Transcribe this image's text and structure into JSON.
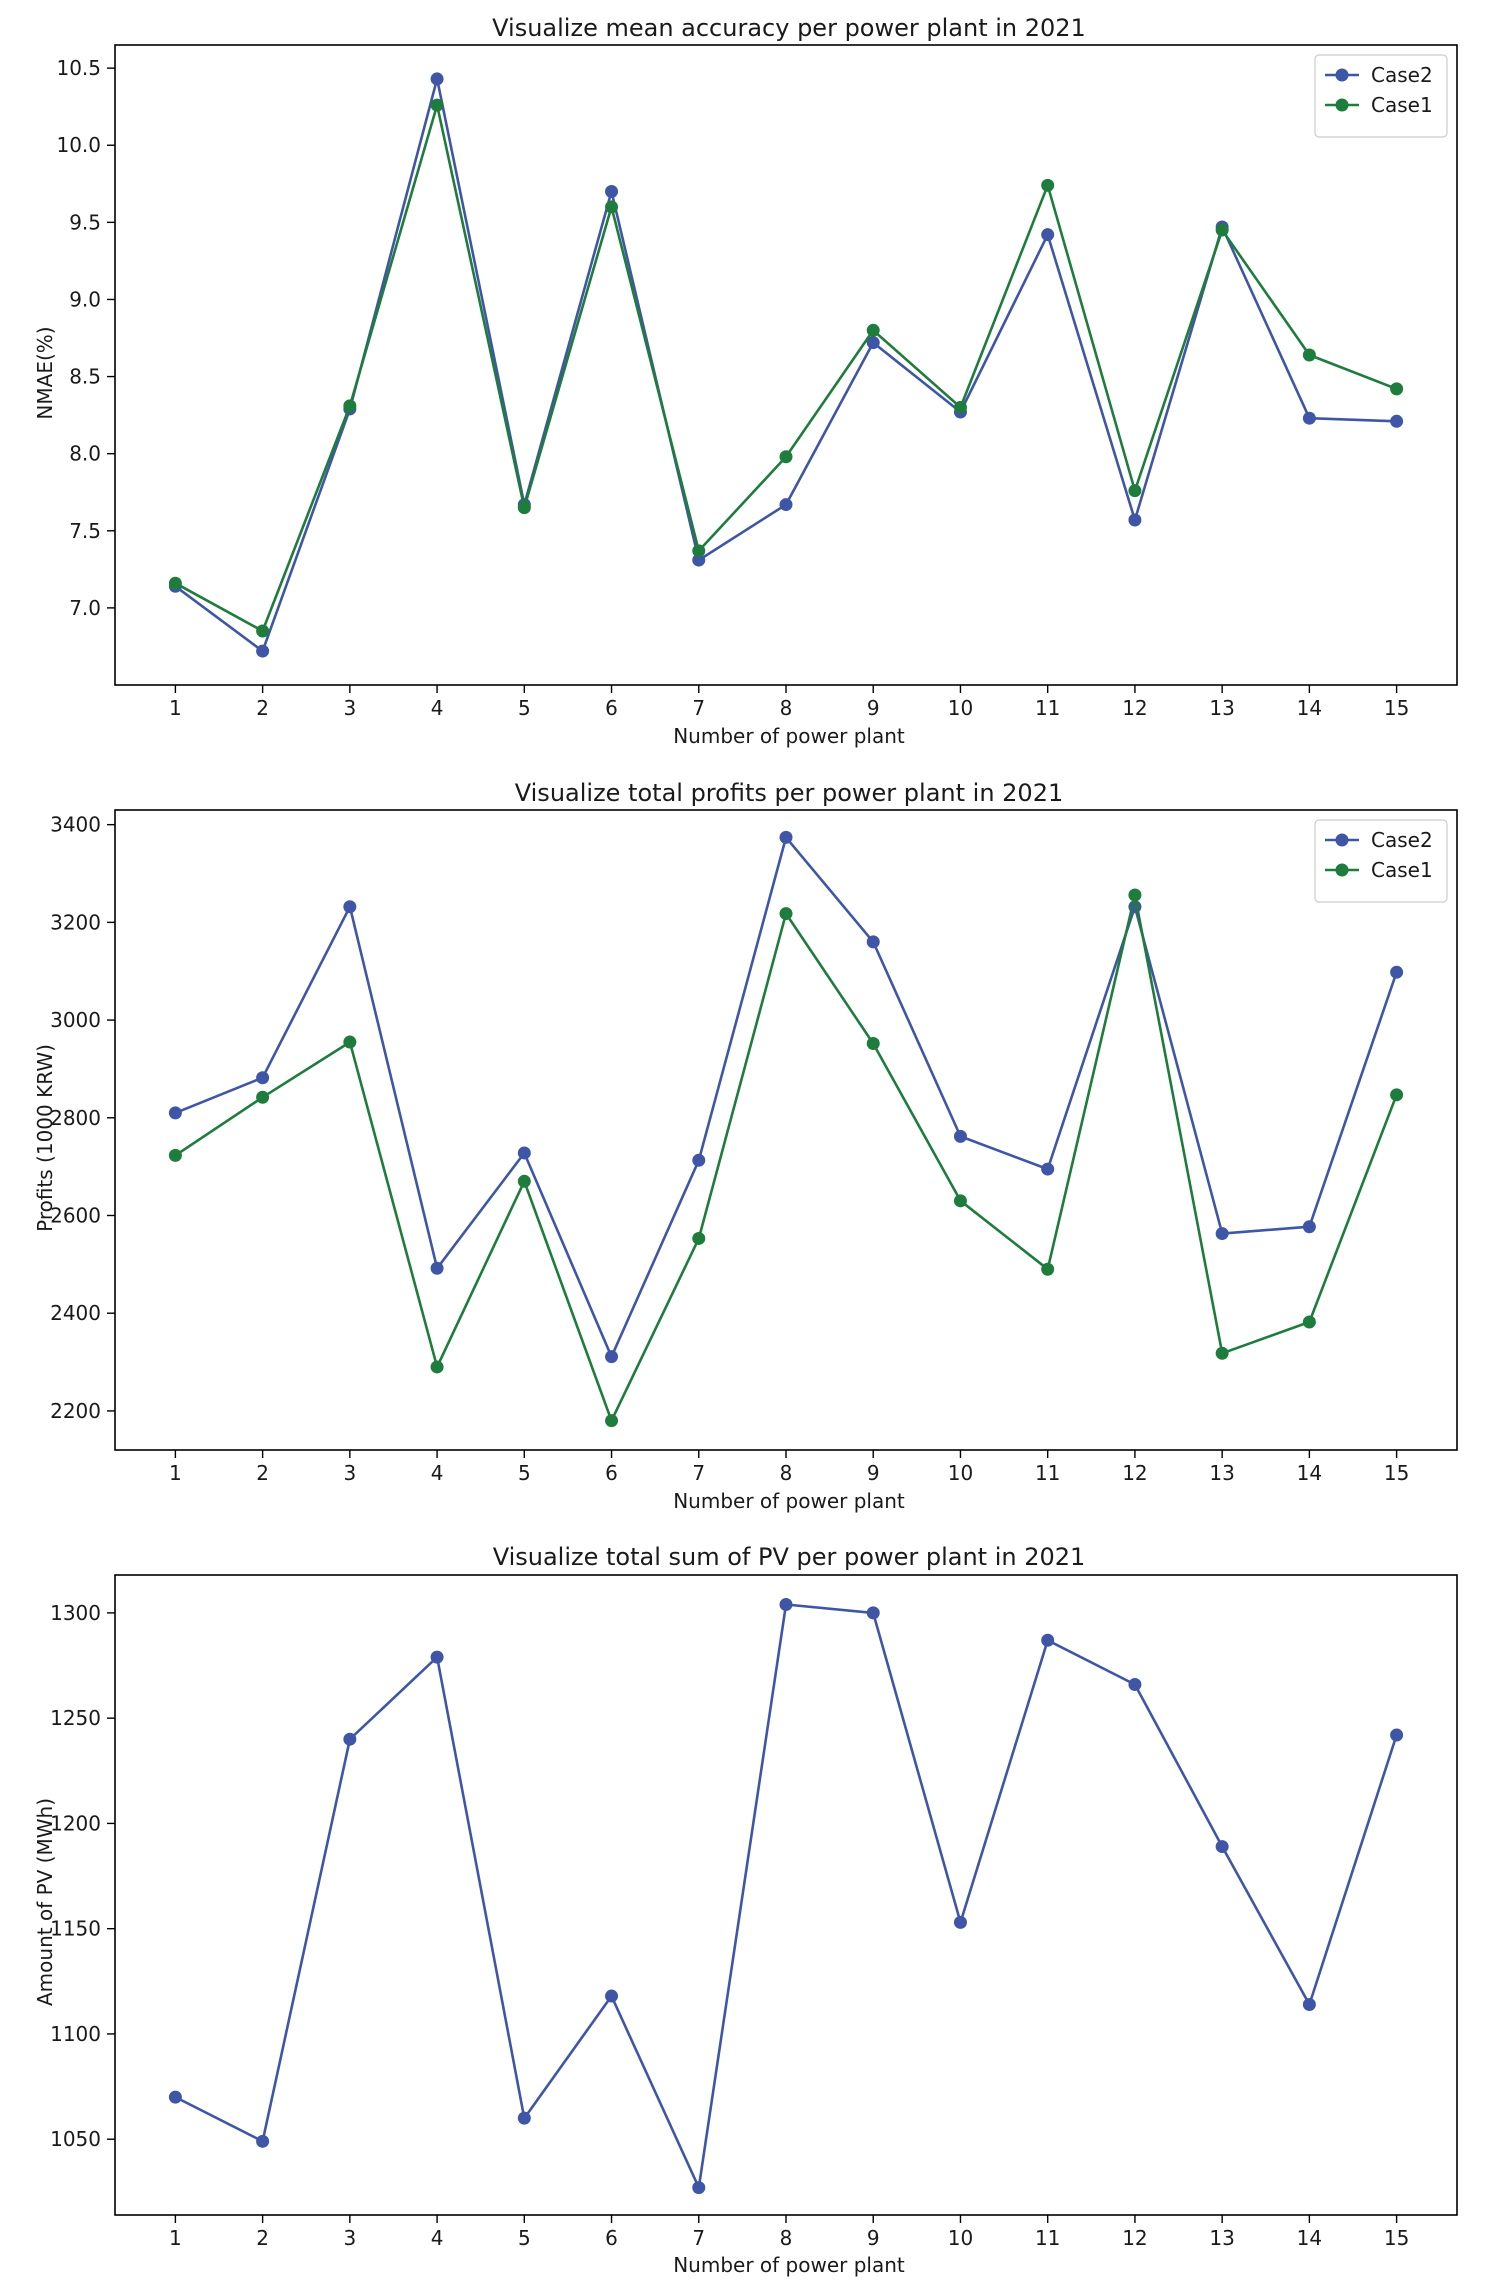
{
  "chart_data": [
    {
      "type": "line",
      "title": "Visualize mean accuracy per power plant in 2021",
      "xlabel": "Number of power plant",
      "ylabel": "NMAE(%)",
      "categories": [
        "1",
        "2",
        "3",
        "4",
        "5",
        "6",
        "7",
        "8",
        "9",
        "10",
        "11",
        "12",
        "13",
        "14",
        "15"
      ],
      "ylim": [
        6.5,
        10.65
      ],
      "yticks": [
        "7.0",
        "7.5",
        "8.0",
        "8.5",
        "9.0",
        "9.5",
        "10.0",
        "10.5"
      ],
      "grid": false,
      "legend": "top-right",
      "series": [
        {
          "name": "Case2",
          "color": "#3f56a6",
          "values": [
            7.14,
            6.72,
            8.29,
            10.43,
            7.67,
            9.7,
            7.31,
            7.67,
            8.72,
            8.27,
            9.42,
            7.57,
            9.47,
            8.23,
            8.21
          ]
        },
        {
          "name": "Case1",
          "color": "#1e7c3c",
          "values": [
            7.16,
            6.85,
            8.31,
            10.26,
            7.65,
            9.6,
            7.37,
            7.98,
            8.8,
            8.3,
            9.74,
            7.76,
            9.45,
            8.64,
            8.42
          ]
        }
      ]
    },
    {
      "type": "line",
      "title": "Visualize total profits per power plant in 2021",
      "xlabel": "Number of power plant",
      "ylabel": "Profits (1000 KRW)",
      "categories": [
        "1",
        "2",
        "3",
        "4",
        "5",
        "6",
        "7",
        "8",
        "9",
        "10",
        "11",
        "12",
        "13",
        "14",
        "15"
      ],
      "ylim": [
        2120,
        3430
      ],
      "yticks": [
        "2200",
        "2400",
        "2600",
        "2800",
        "3000",
        "3200",
        "3400"
      ],
      "grid": false,
      "legend": "top-right",
      "series": [
        {
          "name": "Case2",
          "color": "#3f56a6",
          "values": [
            2810,
            2882,
            3232,
            2492,
            2728,
            2311,
            2713,
            3374,
            3160,
            2762,
            2695,
            3232,
            2563,
            2577,
            3098
          ]
        },
        {
          "name": "Case1",
          "color": "#1e7c3c",
          "values": [
            2723,
            2842,
            2955,
            2290,
            2670,
            2180,
            2553,
            3218,
            2952,
            2630,
            2490,
            3256,
            2318,
            2382,
            2847
          ]
        }
      ]
    },
    {
      "type": "line",
      "title": "Visualize total sum of PV per power plant in 2021",
      "xlabel": "Number of power plant",
      "ylabel": "Amount of PV (MWh)",
      "categories": [
        "1",
        "2",
        "3",
        "4",
        "5",
        "6",
        "7",
        "8",
        "9",
        "10",
        "11",
        "12",
        "13",
        "14",
        "15"
      ],
      "ylim": [
        1014,
        1318
      ],
      "yticks": [
        "1050",
        "1100",
        "1150",
        "1200",
        "1250",
        "1300"
      ],
      "grid": false,
      "legend": "none",
      "series": [
        {
          "name": "PV",
          "color": "#3f56a6",
          "values": [
            1070,
            1049,
            1240,
            1279,
            1060,
            1118,
            1027,
            1304,
            1300,
            1153,
            1287,
            1266,
            1189,
            1114,
            1242
          ]
        }
      ]
    }
  ]
}
